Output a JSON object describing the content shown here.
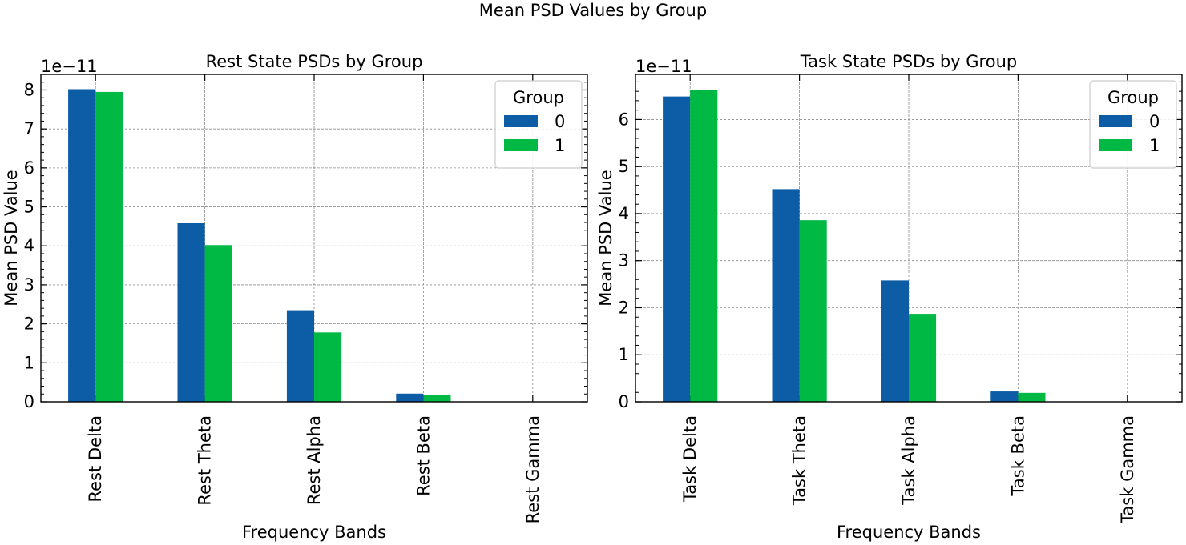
{
  "suptitle": "Mean PSD Values by Group",
  "colors": {
    "group0": "#0C5DA5",
    "group1": "#00B945",
    "grid": "#8c8c8c"
  },
  "chart_data": [
    {
      "type": "bar",
      "title": "Rest State PSDs by Group",
      "xlabel": "Frequency Bands",
      "ylabel": "Mean PSD Value",
      "offset_label": "1e−11",
      "categories": [
        "Rest Delta",
        "Rest Theta",
        "Rest Alpha",
        "Rest Beta",
        "Rest Gamma"
      ],
      "series": [
        {
          "name": "0",
          "values": [
            8.02e-11,
            4.58e-11,
            2.35e-11,
            2.1e-12,
            1e-14
          ]
        },
        {
          "name": "1",
          "values": [
            7.95e-11,
            4.02e-11,
            1.78e-11,
            1.7e-12,
            1e-14
          ]
        }
      ],
      "ylim": [
        0,
        8.4e-11
      ],
      "yticks": [
        0,
        1,
        2,
        3,
        4,
        5,
        6,
        7,
        8
      ],
      "legend": {
        "title": "Group",
        "placement": "top-right"
      },
      "grid": true
    },
    {
      "type": "bar",
      "title": "Task State PSDs by Group",
      "xlabel": "Frequency Bands",
      "ylabel": "Mean PSD Value",
      "offset_label": "1e−11",
      "categories": [
        "Task Delta",
        "Task Theta",
        "Task Alpha",
        "Task Beta",
        "Task Gamma"
      ],
      "series": [
        {
          "name": "0",
          "values": [
            6.49e-11,
            4.52e-11,
            2.58e-11,
            2.2e-12,
            1e-14
          ]
        },
        {
          "name": "1",
          "values": [
            6.63e-11,
            3.86e-11,
            1.87e-11,
            1.9e-12,
            1e-14
          ]
        }
      ],
      "ylim": [
        0,
        6.96e-11
      ],
      "yticks": [
        0,
        1,
        2,
        3,
        4,
        5,
        6
      ],
      "legend": {
        "title": "Group",
        "placement": "top-right"
      },
      "grid": true
    }
  ]
}
